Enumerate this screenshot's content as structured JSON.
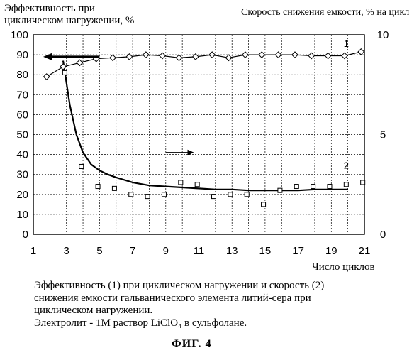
{
  "left_axis_title": [
    "Эффективность  при",
    "циклическом нагружении, %"
  ],
  "right_axis_title": "Скорость снижения емкости, % на цикл",
  "caption": [
    "Эффективность (1) при циклическом нагружении  и скорость (2)",
    "снижения емкости гальванического элемента литий-сера при",
    "циклическом нагружении.",
    "Электролит - 1М раствор LiClO₄ в сульфолане."
  ],
  "figure_label": "ФИГ. 4",
  "chart_data": {
    "type": "line",
    "xlabel": "Число циклов",
    "xlim": [
      1,
      21
    ],
    "ylim": [
      0,
      100
    ],
    "y2lim": [
      0,
      10
    ],
    "grid": true,
    "x_ticks": [
      1,
      3,
      5,
      7,
      9,
      11,
      13,
      15,
      17,
      19,
      21
    ],
    "y_ticks": [
      0,
      10,
      20,
      30,
      40,
      50,
      60,
      70,
      80,
      90,
      100
    ],
    "y2_ticks": [
      0,
      5,
      10
    ],
    "series": [
      {
        "name": "1",
        "axis": "left",
        "marker": "diamond",
        "x": [
          1.8,
          2.8,
          3.8,
          4.8,
          5.8,
          6.8,
          7.8,
          8.8,
          9.8,
          10.8,
          11.8,
          12.8,
          13.8,
          14.8,
          15.8,
          16.8,
          17.8,
          18.8,
          19.8,
          20.8
        ],
        "values": [
          79,
          84,
          86,
          88,
          88.5,
          89,
          90,
          89.5,
          88.5,
          89,
          90,
          88.5,
          90,
          90,
          90,
          90,
          89.5,
          89.5,
          89.5,
          91.5
        ]
      },
      {
        "name": "2",
        "axis": "right",
        "marker": "square",
        "x": [
          2.9,
          3.9,
          4.9,
          5.9,
          6.9,
          7.9,
          8.9,
          9.9,
          10.9,
          11.9,
          12.9,
          13.9,
          14.9,
          15.9,
          16.9,
          17.9,
          18.9,
          19.9,
          20.9
        ],
        "values": [
          8.1,
          3.4,
          2.4,
          2.3,
          2.0,
          1.9,
          2.0,
          2.6,
          2.5,
          1.9,
          2.0,
          2.0,
          1.5,
          2.2,
          2.4,
          2.4,
          2.4,
          2.5,
          2.6
        ],
        "trend_x": [
          2.8,
          3.2,
          3.6,
          4,
          4.5,
          5,
          5.5,
          6,
          7,
          8,
          9,
          10,
          11,
          12,
          13,
          14,
          15,
          16,
          17,
          18,
          19,
          20
        ],
        "trend_values": [
          8.7,
          6.5,
          5.0,
          4.1,
          3.5,
          3.2,
          3.0,
          2.85,
          2.6,
          2.45,
          2.4,
          2.35,
          2.3,
          2.25,
          2.25,
          2.2,
          2.2,
          2.2,
          2.2,
          2.25,
          2.25,
          2.25
        ]
      }
    ],
    "annotations": [
      {
        "text": "1",
        "x": 19.9,
        "y": 94
      },
      {
        "text": "2",
        "x": 19.9,
        "y": 33
      }
    ],
    "axis_arrows": [
      {
        "points_to": "left",
        "x_from": 5.0,
        "x_to": 1.6,
        "y": 89
      },
      {
        "points_to": "right",
        "x_from": 9.0,
        "x_to": 10.7,
        "y": 41
      }
    ]
  }
}
